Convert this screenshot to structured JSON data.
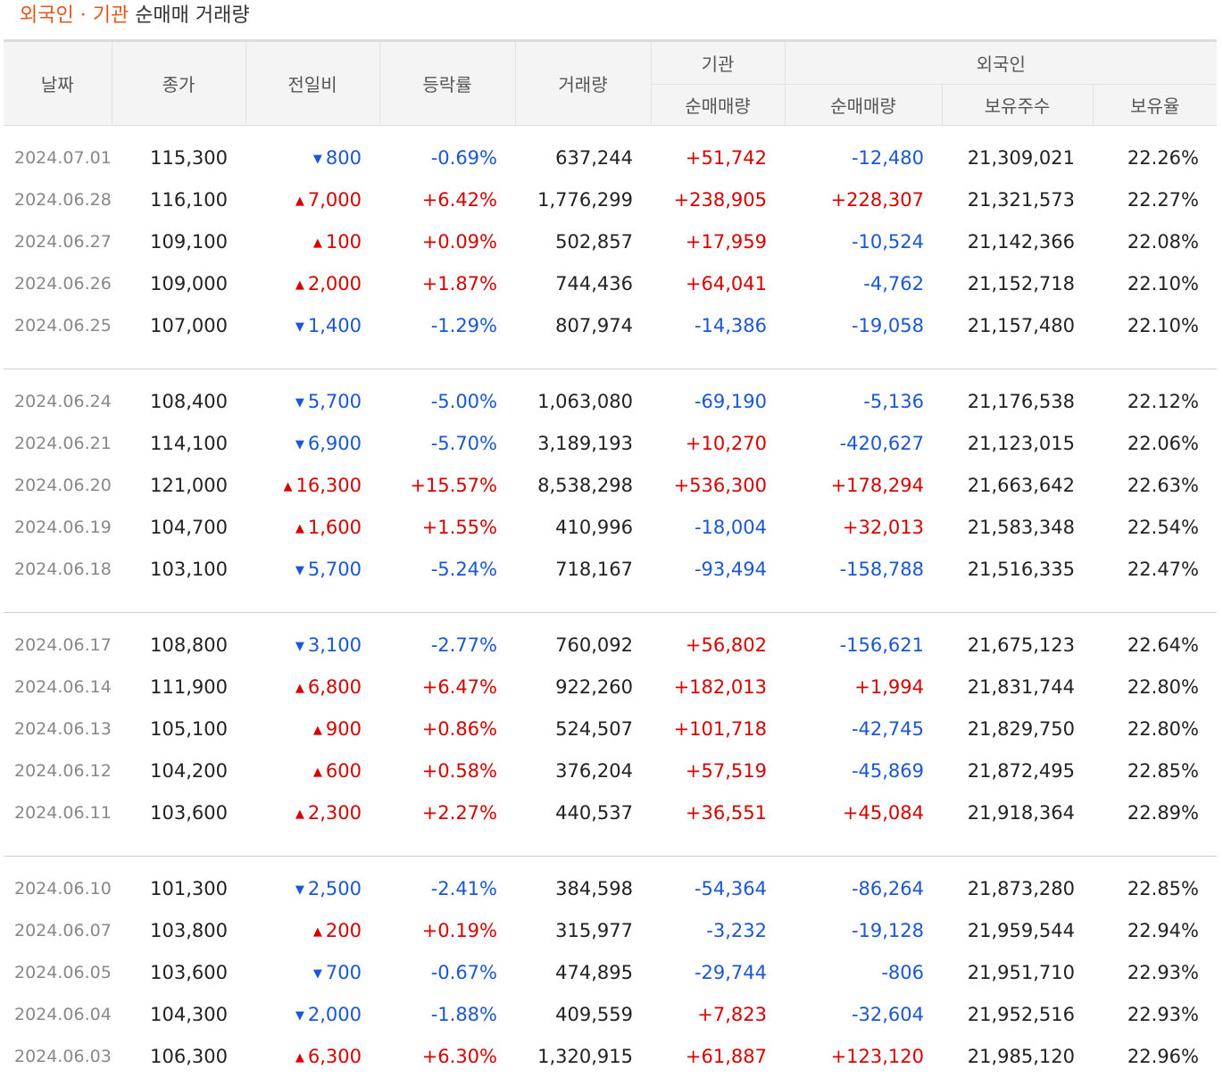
{
  "header": {
    "title_highlight": "외국인 · 기관",
    "title_rest": "순매매 거래량"
  },
  "columns": {
    "date": "날짜",
    "close": "종가",
    "change": "전일비",
    "rate": "등락률",
    "volume": "거래량",
    "inst_group": "기관",
    "inst_net": "순매매량",
    "foreign_group": "외국인",
    "foreign_net": "순매매량",
    "foreign_shares": "보유주수",
    "foreign_ratio": "보유율"
  },
  "colors": {
    "up": "#d60000",
    "down": "#1a56d6",
    "title_accent": "#e2561c"
  },
  "groups": [
    [
      {
        "date": "2024.07.01",
        "close": "115,300",
        "dir": "down",
        "change": "800",
        "rate": "-0.69%",
        "volume": "637,244",
        "inst": "+51,742",
        "foreign": "-12,480",
        "shares": "21,309,021",
        "ratio": "22.26%"
      },
      {
        "date": "2024.06.28",
        "close": "116,100",
        "dir": "up",
        "change": "7,000",
        "rate": "+6.42%",
        "volume": "1,776,299",
        "inst": "+238,905",
        "foreign": "+228,307",
        "shares": "21,321,573",
        "ratio": "22.27%"
      },
      {
        "date": "2024.06.27",
        "close": "109,100",
        "dir": "up",
        "change": "100",
        "rate": "+0.09%",
        "volume": "502,857",
        "inst": "+17,959",
        "foreign": "-10,524",
        "shares": "21,142,366",
        "ratio": "22.08%"
      },
      {
        "date": "2024.06.26",
        "close": "109,000",
        "dir": "up",
        "change": "2,000",
        "rate": "+1.87%",
        "volume": "744,436",
        "inst": "+64,041",
        "foreign": "-4,762",
        "shares": "21,152,718",
        "ratio": "22.10%"
      },
      {
        "date": "2024.06.25",
        "close": "107,000",
        "dir": "down",
        "change": "1,400",
        "rate": "-1.29%",
        "volume": "807,974",
        "inst": "-14,386",
        "foreign": "-19,058",
        "shares": "21,157,480",
        "ratio": "22.10%"
      }
    ],
    [
      {
        "date": "2024.06.24",
        "close": "108,400",
        "dir": "down",
        "change": "5,700",
        "rate": "-5.00%",
        "volume": "1,063,080",
        "inst": "-69,190",
        "foreign": "-5,136",
        "shares": "21,176,538",
        "ratio": "22.12%"
      },
      {
        "date": "2024.06.21",
        "close": "114,100",
        "dir": "down",
        "change": "6,900",
        "rate": "-5.70%",
        "volume": "3,189,193",
        "inst": "+10,270",
        "foreign": "-420,627",
        "shares": "21,123,015",
        "ratio": "22.06%"
      },
      {
        "date": "2024.06.20",
        "close": "121,000",
        "dir": "up",
        "change": "16,300",
        "rate": "+15.57%",
        "volume": "8,538,298",
        "inst": "+536,300",
        "foreign": "+178,294",
        "shares": "21,663,642",
        "ratio": "22.63%"
      },
      {
        "date": "2024.06.19",
        "close": "104,700",
        "dir": "up",
        "change": "1,600",
        "rate": "+1.55%",
        "volume": "410,996",
        "inst": "-18,004",
        "foreign": "+32,013",
        "shares": "21,583,348",
        "ratio": "22.54%"
      },
      {
        "date": "2024.06.18",
        "close": "103,100",
        "dir": "down",
        "change": "5,700",
        "rate": "-5.24%",
        "volume": "718,167",
        "inst": "-93,494",
        "foreign": "-158,788",
        "shares": "21,516,335",
        "ratio": "22.47%"
      }
    ],
    [
      {
        "date": "2024.06.17",
        "close": "108,800",
        "dir": "down",
        "change": "3,100",
        "rate": "-2.77%",
        "volume": "760,092",
        "inst": "+56,802",
        "foreign": "-156,621",
        "shares": "21,675,123",
        "ratio": "22.64%"
      },
      {
        "date": "2024.06.14",
        "close": "111,900",
        "dir": "up",
        "change": "6,800",
        "rate": "+6.47%",
        "volume": "922,260",
        "inst": "+182,013",
        "foreign": "+1,994",
        "shares": "21,831,744",
        "ratio": "22.80%"
      },
      {
        "date": "2024.06.13",
        "close": "105,100",
        "dir": "up",
        "change": "900",
        "rate": "+0.86%",
        "volume": "524,507",
        "inst": "+101,718",
        "foreign": "-42,745",
        "shares": "21,829,750",
        "ratio": "22.80%"
      },
      {
        "date": "2024.06.12",
        "close": "104,200",
        "dir": "up",
        "change": "600",
        "rate": "+0.58%",
        "volume": "376,204",
        "inst": "+57,519",
        "foreign": "-45,869",
        "shares": "21,872,495",
        "ratio": "22.85%"
      },
      {
        "date": "2024.06.11",
        "close": "103,600",
        "dir": "up",
        "change": "2,300",
        "rate": "+2.27%",
        "volume": "440,537",
        "inst": "+36,551",
        "foreign": "+45,084",
        "shares": "21,918,364",
        "ratio": "22.89%"
      }
    ],
    [
      {
        "date": "2024.06.10",
        "close": "101,300",
        "dir": "down",
        "change": "2,500",
        "rate": "-2.41%",
        "volume": "384,598",
        "inst": "-54,364",
        "foreign": "-86,264",
        "shares": "21,873,280",
        "ratio": "22.85%"
      },
      {
        "date": "2024.06.07",
        "close": "103,800",
        "dir": "up",
        "change": "200",
        "rate": "+0.19%",
        "volume": "315,977",
        "inst": "-3,232",
        "foreign": "-19,128",
        "shares": "21,959,544",
        "ratio": "22.94%"
      },
      {
        "date": "2024.06.05",
        "close": "103,600",
        "dir": "down",
        "change": "700",
        "rate": "-0.67%",
        "volume": "474,895",
        "inst": "-29,744",
        "foreign": "-806",
        "shares": "21,951,710",
        "ratio": "22.93%"
      },
      {
        "date": "2024.06.04",
        "close": "104,300",
        "dir": "down",
        "change": "2,000",
        "rate": "-1.88%",
        "volume": "409,559",
        "inst": "+7,823",
        "foreign": "-32,604",
        "shares": "21,952,516",
        "ratio": "22.93%"
      },
      {
        "date": "2024.06.03",
        "close": "106,300",
        "dir": "up",
        "change": "6,300",
        "rate": "+6.30%",
        "volume": "1,320,915",
        "inst": "+61,887",
        "foreign": "+123,120",
        "shares": "21,985,120",
        "ratio": "22.96%"
      }
    ]
  ]
}
